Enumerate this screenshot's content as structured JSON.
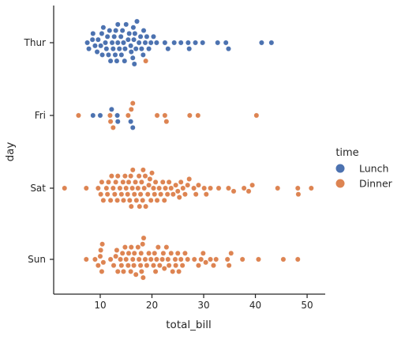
{
  "chart_data": {
    "type": "scatter",
    "subtype": "swarm",
    "x_key": "total_bill",
    "category_key": "day",
    "hue_key": "time",
    "xlabel": "total_bill",
    "ylabel": "day",
    "xlim": [
      1,
      53.5
    ],
    "xticks": [
      10,
      20,
      30,
      40,
      50
    ],
    "categories": [
      "Thur",
      "Fri",
      "Sat",
      "Sun"
    ],
    "grid": false,
    "legend": {
      "title": "time",
      "placement": "right",
      "entries": [
        {
          "name": "Lunch",
          "color": "#4c72b0"
        },
        {
          "name": "Dinner",
          "color": "#dd8452"
        }
      ]
    },
    "series": [
      {
        "name": "Lunch",
        "color": "#4c72b0",
        "points": [
          {
            "day": "Thur",
            "x": [
              7.5,
              7.8,
              8.5,
              8.6,
              9.0,
              9.4,
              9.6,
              10.1,
              10.3,
              10.4,
              10.6,
              11.0,
              11.2,
              11.4,
              11.6,
              11.8,
              12.0,
              12.3,
              12.5,
              12.7,
              12.9,
              13.0,
              13.2,
              13.4,
              13.4,
              13.7,
              14.0,
              14.1,
              14.3,
              14.5,
              14.7,
              14.8,
              15.0,
              15.4,
              15.6,
              15.9,
              16.0,
              16.3,
              16.4,
              16.5,
              16.6,
              16.7,
              16.9,
              17.1,
              17.5,
              17.8,
              18.0,
              18.3,
              18.4,
              18.7,
              19.0,
              19.4,
              19.8,
              20.3,
              20.9,
              22.5,
              23.1,
              24.3,
              25.6,
              27.0,
              27.2,
              28.4,
              29.8,
              32.7,
              34.3,
              34.8,
              41.2,
              43.1
            ]
          },
          {
            "day": "Fri",
            "x": [
              8.6,
              10.0,
              12.2,
              13.3,
              13.4,
              15.9,
              16.3
            ]
          }
        ]
      },
      {
        "name": "Dinner",
        "color": "#dd8452",
        "points": [
          {
            "day": "Thur",
            "x": [
              18.8
            ]
          },
          {
            "day": "Fri",
            "x": [
              5.8,
              11.9,
              12.5,
              12.0,
              15.4,
              16.0,
              16.3,
              21.0,
              22.5,
              22.8,
              27.3,
              28.9,
              40.2
            ]
          },
          {
            "day": "Sat",
            "x": [
              3.1,
              7.3,
              9.6,
              10.1,
              10.3,
              10.6,
              11.2,
              11.4,
              11.6,
              12.0,
              12.2,
              12.5,
              12.8,
              13.0,
              13.3,
              13.4,
              13.8,
              14.1,
              14.4,
              14.5,
              14.8,
              15.0,
              15.3,
              15.5,
              15.7,
              15.9,
              16.0,
              16.2,
              16.3,
              16.6,
              16.8,
              17.0,
              17.3,
              17.5,
              17.6,
              17.8,
              18.0,
              18.2,
              18.3,
              18.5,
              18.7,
              18.8,
              19.2,
              19.4,
              19.6,
              19.8,
              20.0,
              20.3,
              20.5,
              20.7,
              21.0,
              21.4,
              21.7,
              22.1,
              22.4,
              22.6,
              23.0,
              23.3,
              23.7,
              24.1,
              24.6,
              25.0,
              25.3,
              25.6,
              26.0,
              26.4,
              26.9,
              27.2,
              28.1,
              28.5,
              29.0,
              30.1,
              30.5,
              31.3,
              32.9,
              34.8,
              35.8,
              37.8,
              38.7,
              39.4,
              44.3,
              48.3,
              48.2,
              50.8
            ]
          },
          {
            "day": "Sun",
            "x": [
              7.3,
              9.0,
              9.6,
              10.0,
              10.1,
              10.3,
              10.4,
              10.6,
              12.0,
              12.6,
              13.0,
              13.2,
              13.4,
              13.9,
              14.1,
              14.3,
              14.5,
              14.8,
              15.0,
              15.4,
              15.5,
              15.9,
              16.0,
              16.3,
              16.5,
              16.6,
              16.9,
              17.3,
              17.5,
              17.8,
              17.9,
              18.0,
              18.2,
              18.3,
              18.4,
              18.7,
              19.0,
              19.4,
              19.8,
              20.3,
              20.5,
              20.7,
              20.9,
              21.2,
              21.5,
              22.0,
              22.2,
              22.4,
              22.8,
              23.1,
              23.3,
              23.7,
              24.0,
              24.5,
              24.6,
              25.0,
              25.2,
              25.6,
              25.9,
              26.4,
              26.9,
              28.2,
              29.0,
              29.5,
              29.9,
              30.4,
              31.3,
              31.9,
              32.4,
              34.6,
              34.9,
              35.3,
              37.5,
              40.6,
              45.4,
              48.2
            ]
          }
        ]
      }
    ]
  }
}
